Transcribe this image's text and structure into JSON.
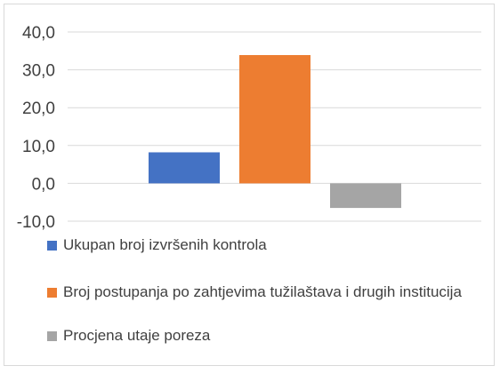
{
  "chart_data": {
    "type": "bar",
    "title": "",
    "xlabel": "",
    "ylabel": "",
    "ylim": [
      -10,
      40
    ],
    "ticks": [
      40,
      30,
      20,
      10,
      0,
      -10
    ],
    "tick_labels": [
      "40,0",
      "30,0",
      "20,0",
      "10,0",
      "0,0",
      "-10,0"
    ],
    "grid": true,
    "legend_position": "bottom",
    "series": [
      {
        "name": "Ukupan broj izvršenih kontrola",
        "value": 8.2,
        "color": "#4472c4"
      },
      {
        "name": "Broj postupanja po zahtjevima tužilaštava i drugih institucija",
        "value": 33.9,
        "color": "#ed7d31"
      },
      {
        "name": "Procjena utaje poreza",
        "value": -6.5,
        "color": "#a5a5a5"
      }
    ]
  },
  "legend": {
    "items": [
      {
        "label": "Ukupan broj izvršenih kontrola",
        "color": "#4472c4"
      },
      {
        "label": "Broj postupanja po zahtjevima tužilaštava i drugih institucija",
        "color": "#ed7d31"
      },
      {
        "label": "Procjena utaje poreza",
        "color": "#a5a5a5"
      }
    ]
  }
}
